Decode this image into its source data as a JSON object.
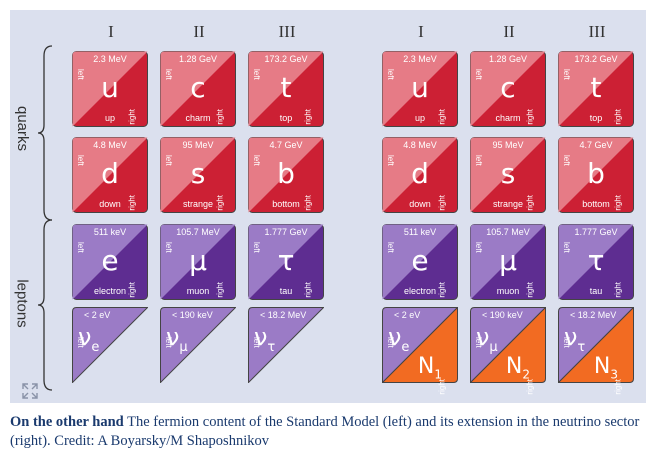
{
  "columns": [
    "I",
    "II",
    "III"
  ],
  "groups": {
    "quarks": "quarks",
    "leptons": "leptons"
  },
  "colors": {
    "quark_light": "#e67b86",
    "quark_dark": "#cc2034",
    "lepton_light": "#9b7bc6",
    "lepton_dark": "#5e2d91",
    "sterile": "#f26b22",
    "background": "#dbe0ee"
  },
  "side_labels": {
    "left": "left",
    "right": "right"
  },
  "rows": [
    {
      "kind": "quark",
      "cells": [
        {
          "mass": "2.3 MeV",
          "symbol": "u",
          "name": "up"
        },
        {
          "mass": "1.28 GeV",
          "symbol": "c",
          "name": "charm"
        },
        {
          "mass": "173.2 GeV",
          "symbol": "t",
          "name": "top"
        }
      ]
    },
    {
      "kind": "quark",
      "cells": [
        {
          "mass": "4.8 MeV",
          "symbol": "d",
          "name": "down"
        },
        {
          "mass": "95 MeV",
          "symbol": "s",
          "name": "strange"
        },
        {
          "mass": "4.7 GeV",
          "symbol": "b",
          "name": "bottom"
        }
      ]
    },
    {
      "kind": "lepton",
      "cells": [
        {
          "mass": "511 keV",
          "symbol": "e",
          "name": "electron"
        },
        {
          "mass": "105.7 MeV",
          "symbol": "μ",
          "name": "muon"
        },
        {
          "mass": "1.777 GeV",
          "symbol": "τ",
          "name": "tau"
        }
      ]
    },
    {
      "kind": "neutrino",
      "cells": [
        {
          "mass": "< 2 eV",
          "symbol": "ν",
          "sub": "e",
          "N": "N",
          "Nsub": "1"
        },
        {
          "mass": "< 190 keV",
          "symbol": "ν",
          "sub": "μ",
          "N": "N",
          "Nsub": "2"
        },
        {
          "mass": "< 18.2 MeV",
          "symbol": "ν",
          "sub": "τ",
          "N": "N",
          "Nsub": "3"
        }
      ]
    }
  ],
  "caption": {
    "bold": "On the other hand",
    "text": " The fermion content of the Standard Model (left) and its extension in the neutrino sector (right). Credit: A Boyarsky/M Shaposhnikov"
  }
}
